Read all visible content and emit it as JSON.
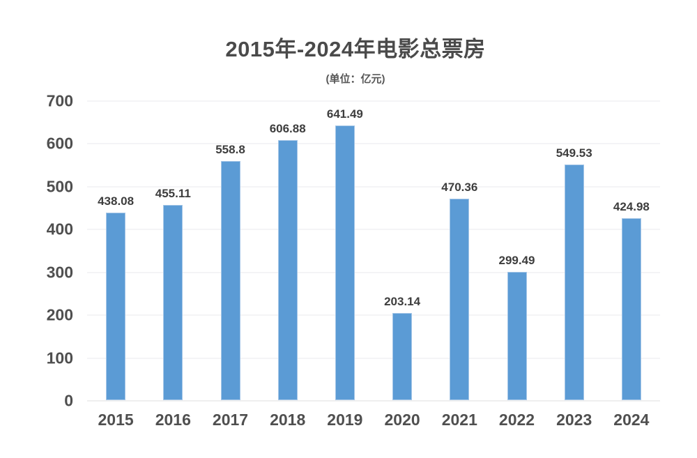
{
  "chart": {
    "bar_color": "#5B9BD5",
    "grid_color": "#E9E9EC",
    "baseline_color": "#DCDCDF",
    "title_color": "#4A4A4A",
    "axis_text_color": "#4F4F4F",
    "value_text_color": "#3D3D3D"
  },
  "chart_data": {
    "type": "bar",
    "title": "2015年-2024年电影总票房",
    "subtitle": "(单位：亿元)",
    "categories": [
      "2015",
      "2016",
      "2017",
      "2018",
      "2019",
      "2020",
      "2021",
      "2022",
      "2023",
      "2024"
    ],
    "values": [
      438.08,
      455.11,
      558.8,
      606.88,
      641.49,
      203.14,
      470.36,
      299.49,
      549.53,
      424.98
    ],
    "value_labels": [
      "438.08",
      "455.11",
      "558.8",
      "606.88",
      "641.49",
      "203.14",
      "470.36",
      "299.49",
      "549.53",
      "424.98"
    ],
    "xlabel": "",
    "ylabel": "",
    "ylim": [
      0,
      700
    ],
    "ytick_interval": 100,
    "yticks": [
      "0",
      "100",
      "200",
      "300",
      "400",
      "500",
      "600",
      "700"
    ],
    "grid": true,
    "legend": false,
    "legend_position": "none"
  }
}
